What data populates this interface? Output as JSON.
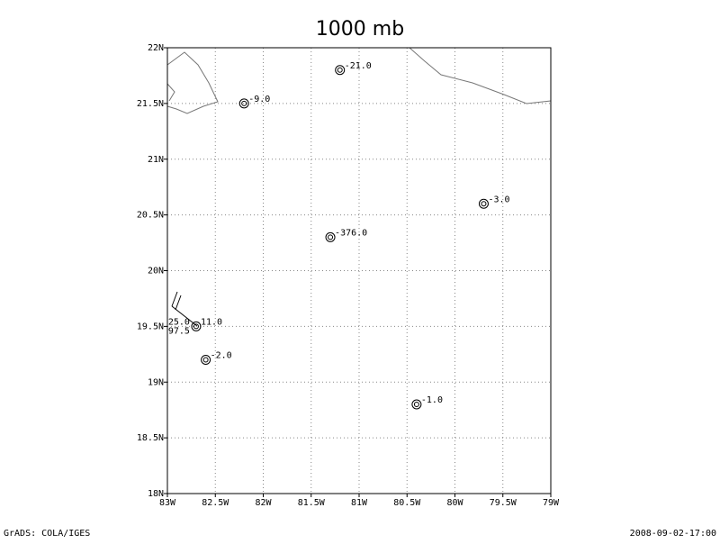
{
  "chart_data": {
    "type": "scatter",
    "title": "1000 mb",
    "x": [
      -82.2,
      -81.2,
      -79.7,
      -81.3,
      -82.7,
      -82.6,
      -80.4
    ],
    "y": [
      21.5,
      21.8,
      20.6,
      20.3,
      19.5,
      19.2,
      18.8
    ],
    "values": [
      -9,
      -21,
      -3,
      -376,
      11,
      -2,
      -1
    ],
    "value_labels": [
      "-9.0",
      "-21.0",
      "-3.0",
      "-376.0",
      "11.0",
      "-2.0",
      "-1.0"
    ],
    "station_notes": [
      "25.0",
      "97.5"
    ],
    "xlim": [
      -83,
      -79
    ],
    "ylim": [
      18,
      22
    ],
    "xticks": [
      {
        "value": -83,
        "label": "83W"
      },
      {
        "value": -82.5,
        "label": "82.5W"
      },
      {
        "value": -82,
        "label": "82W"
      },
      {
        "value": -81.5,
        "label": "81.5W"
      },
      {
        "value": -81,
        "label": "81W"
      },
      {
        "value": -80.5,
        "label": "80.5W"
      },
      {
        "value": -80,
        "label": "80W"
      },
      {
        "value": -79.5,
        "label": "79.5W"
      },
      {
        "value": -79,
        "label": "79W"
      }
    ],
    "yticks": [
      {
        "value": 18,
        "label": "18N"
      },
      {
        "value": 18.5,
        "label": "18.5N"
      },
      {
        "value": 19,
        "label": "19N"
      },
      {
        "value": 19.5,
        "label": "19.5N"
      },
      {
        "value": 20,
        "label": "20N"
      },
      {
        "value": 20.5,
        "label": "20.5N"
      },
      {
        "value": 21,
        "label": "21N"
      },
      {
        "value": 21.5,
        "label": "21.5N"
      },
      {
        "value": 22,
        "label": "22N"
      }
    ],
    "grid": true,
    "color": "#000000"
  },
  "footer": {
    "left": "GrADS: COLA/IGES",
    "right": "2008-09-02-17:00"
  }
}
